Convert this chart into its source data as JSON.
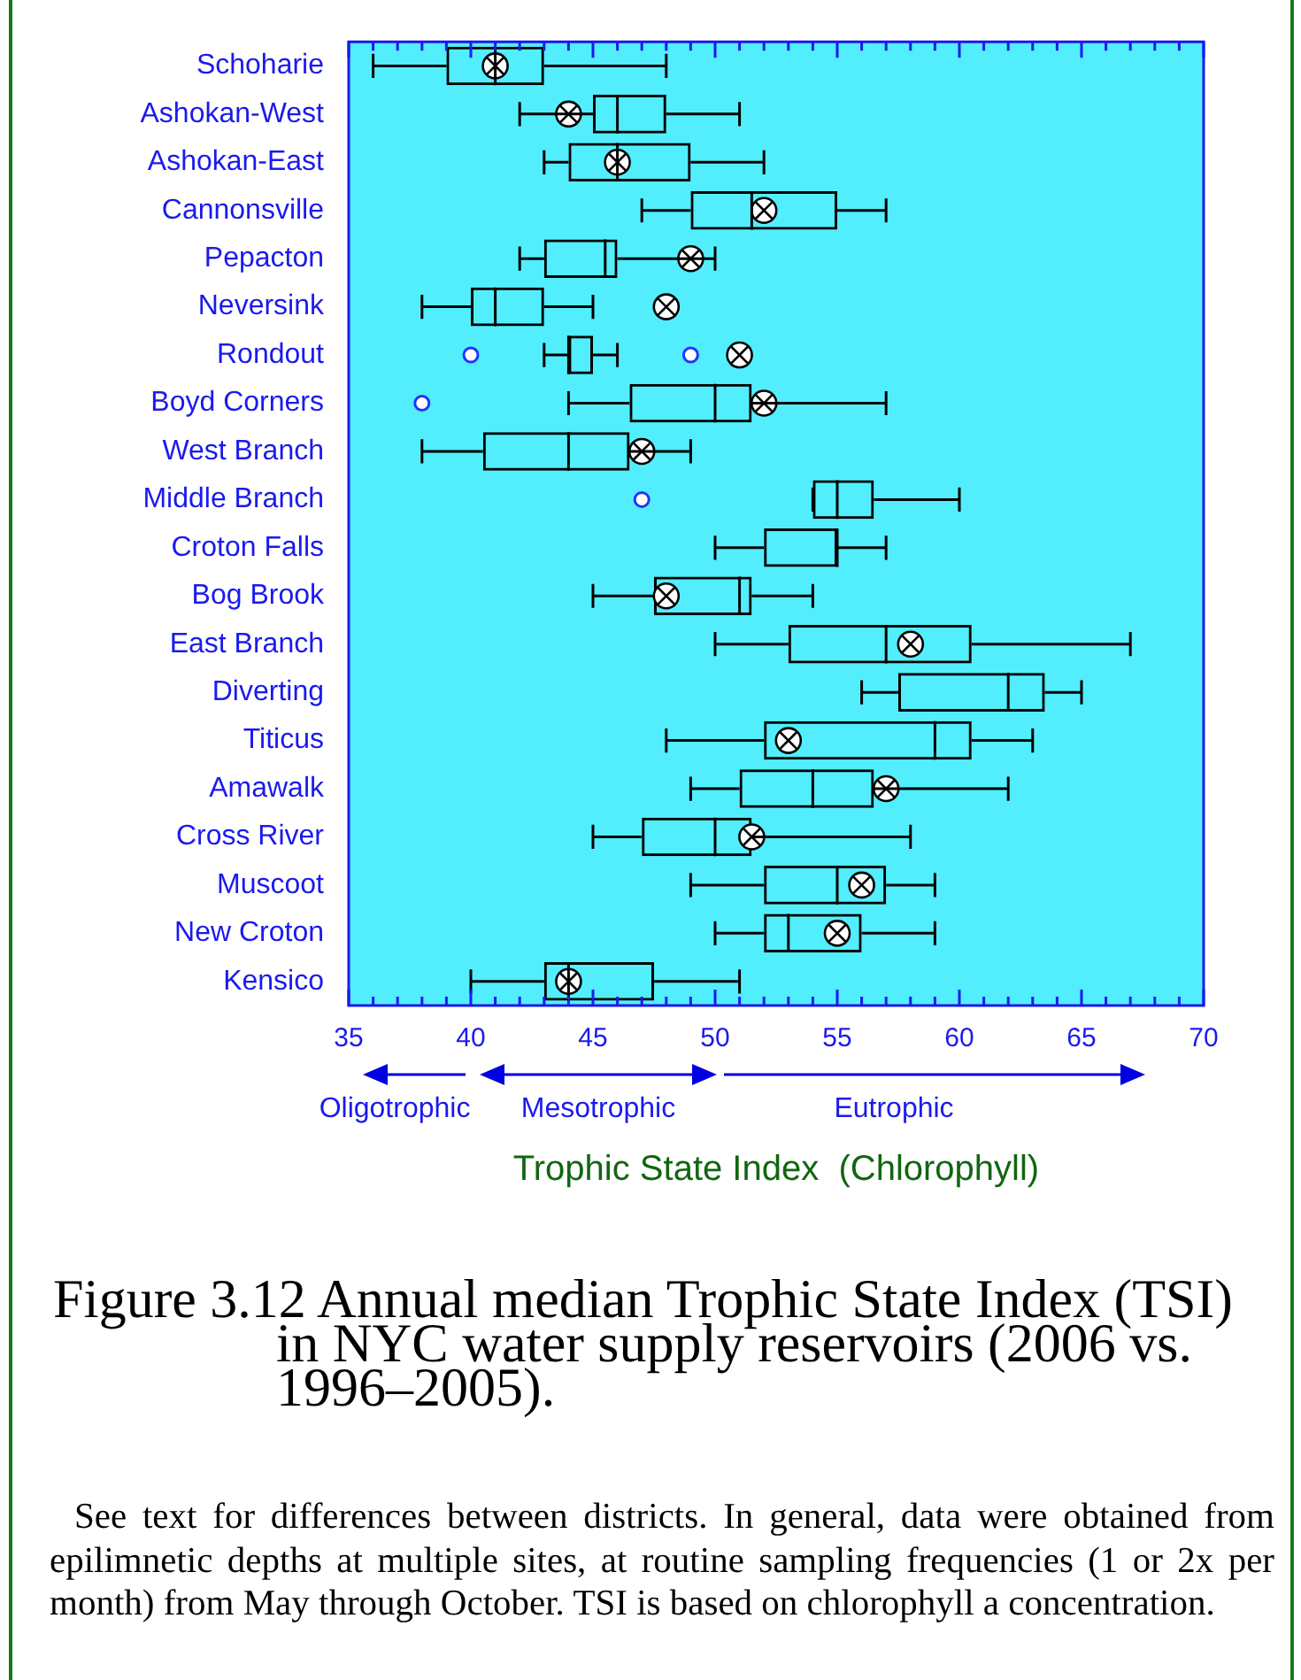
{
  "chart_data": {
    "type": "box",
    "orientation": "horizontal",
    "title": "Figure 3.12  Annual median Trophic State Index (TSI) in NYC water supply reservoirs (2006 vs. 1996–2005).",
    "xlabel": "Trophic State Index  (Chlorophyll)",
    "categories": [
      "Schoharie",
      "Ashokan-West",
      "Ashokan-East",
      "Cannonsville",
      "Pepacton",
      "Neversink",
      "Rondout",
      "Boyd Corners",
      "West Branch",
      "Middle Branch",
      "Croton Falls",
      "Bog Brook",
      "East Branch",
      "Diverting",
      "Titicus",
      "Amawalk",
      "Cross River",
      "Muscoot",
      "New Croton",
      "Kensico"
    ],
    "series": [
      {
        "color": "#000000",
        "boxes": [
          {
            "low": 36,
            "q1": 39,
            "median": 41,
            "q3": 43,
            "high": 48
          },
          {
            "low": 42,
            "q1": 45,
            "median": 46,
            "q3": 48,
            "high": 51
          },
          {
            "low": 43,
            "q1": 44,
            "median": 46,
            "q3": 49,
            "high": 52
          },
          {
            "low": 47,
            "q1": 49,
            "median": 51.5,
            "q3": 55,
            "high": 57
          },
          {
            "low": 42,
            "q1": 43,
            "median": 45.5,
            "q3": 46,
            "high": 50
          },
          {
            "low": 38,
            "q1": 40,
            "median": 41,
            "q3": 43,
            "high": 45
          },
          {
            "low": 43,
            "q1": 44,
            "median": 44,
            "q3": 45,
            "high": 46,
            "outliers": [
              40,
              49
            ]
          },
          {
            "low": 44,
            "q1": 46.5,
            "median": 50,
            "q3": 51.5,
            "high": 57,
            "outliers": [
              38
            ]
          },
          {
            "low": 38,
            "q1": 40.5,
            "median": 44,
            "q3": 46.5,
            "high": 49
          },
          {
            "low": 54,
            "q1": 54,
            "median": 55,
            "q3": 56.5,
            "high": 60,
            "outliers": [
              47
            ]
          },
          {
            "low": 50,
            "q1": 52,
            "median": 55,
            "q3": 55,
            "high": 57
          },
          {
            "low": 45,
            "q1": 47.5,
            "median": 51,
            "q3": 51.5,
            "high": 54
          },
          {
            "low": 50,
            "q1": 53,
            "median": 57,
            "q3": 60.5,
            "high": 67
          },
          {
            "low": 56,
            "q1": 57.5,
            "median": 62,
            "q3": 63.5,
            "high": 65
          },
          {
            "low": 48,
            "q1": 52,
            "median": 59,
            "q3": 60.5,
            "high": 63
          },
          {
            "low": 49,
            "q1": 51,
            "median": 54,
            "q3": 56.5,
            "high": 62
          },
          {
            "low": 45,
            "q1": 47,
            "median": 50,
            "q3": 51.5,
            "high": 58
          },
          {
            "low": 49,
            "q1": 52,
            "median": 55,
            "q3": 57,
            "high": 59
          },
          {
            "low": 50,
            "q1": 52,
            "median": 53,
            "q3": 56,
            "high": 59
          },
          {
            "low": 40,
            "q1": 43,
            "median": 44,
            "q3": 47.5,
            "high": 51
          }
        ]
      },
      {
        "type": "scatter",
        "color": "#000000",
        "marker": "circle",
        "x": [
          "Schoharie",
          "Ashokan-West",
          "Ashokan-East",
          "Cannonsville",
          "Pepacton",
          "Neversink",
          "Rondout",
          "Boyd Corners",
          "West Branch",
          "Bog Brook",
          "East Branch",
          "Titicus",
          "Amawalk",
          "Cross River",
          "Muscoot",
          "New Croton",
          "Kensico"
        ],
        "values": [
          41,
          44,
          46,
          52,
          49,
          48,
          51,
          52,
          47,
          48,
          58,
          53,
          57,
          51.5,
          56,
          55,
          44
        ]
      }
    ],
    "xlim": [
      35,
      70
    ],
    "xticks": [
      35,
      {
        "value": 36,
        "label": null
      },
      {
        "value": 37,
        "label": null
      },
      {
        "value": 38,
        "label": null
      },
      {
        "value": 39,
        "label": null
      },
      40,
      {
        "value": 41,
        "label": null
      },
      {
        "value": 42,
        "label": null
      },
      {
        "value": 43,
        "label": null
      },
      {
        "value": 44,
        "label": null
      },
      45,
      {
        "value": 46,
        "label": null
      },
      {
        "value": 47,
        "label": null
      },
      {
        "value": 48,
        "label": null
      },
      {
        "value": 49,
        "label": null
      },
      50,
      {
        "value": 51,
        "label": null
      },
      {
        "value": 52,
        "label": null
      },
      {
        "value": 53,
        "label": null
      },
      {
        "value": 54,
        "label": null
      },
      55,
      {
        "value": 56,
        "label": null
      },
      {
        "value": 57,
        "label": null
      },
      {
        "value": 58,
        "label": null
      },
      {
        "value": 59,
        "label": null
      },
      60,
      {
        "value": 61,
        "label": null
      },
      {
        "value": 62,
        "label": null
      },
      {
        "value": 63,
        "label": null
      },
      {
        "value": 64,
        "label": null
      },
      65,
      {
        "value": 66,
        "label": null
      },
      {
        "value": 67,
        "label": null
      },
      {
        "value": 68,
        "label": null
      },
      {
        "value": 69,
        "label": null
      },
      70
    ],
    "annotations": [
      "Oligotrophic",
      "Mesotrophic",
      "Eutrophic",
      "See text for differences between districts.  In general, data were obtained from epilimnetic depths at multiple sites, at routine sampling frequencies (1 or 2x per month) from May through October. TSI is based on chlorophyll a concentration."
    ],
    "grid": false,
    "legend": false
  }
}
